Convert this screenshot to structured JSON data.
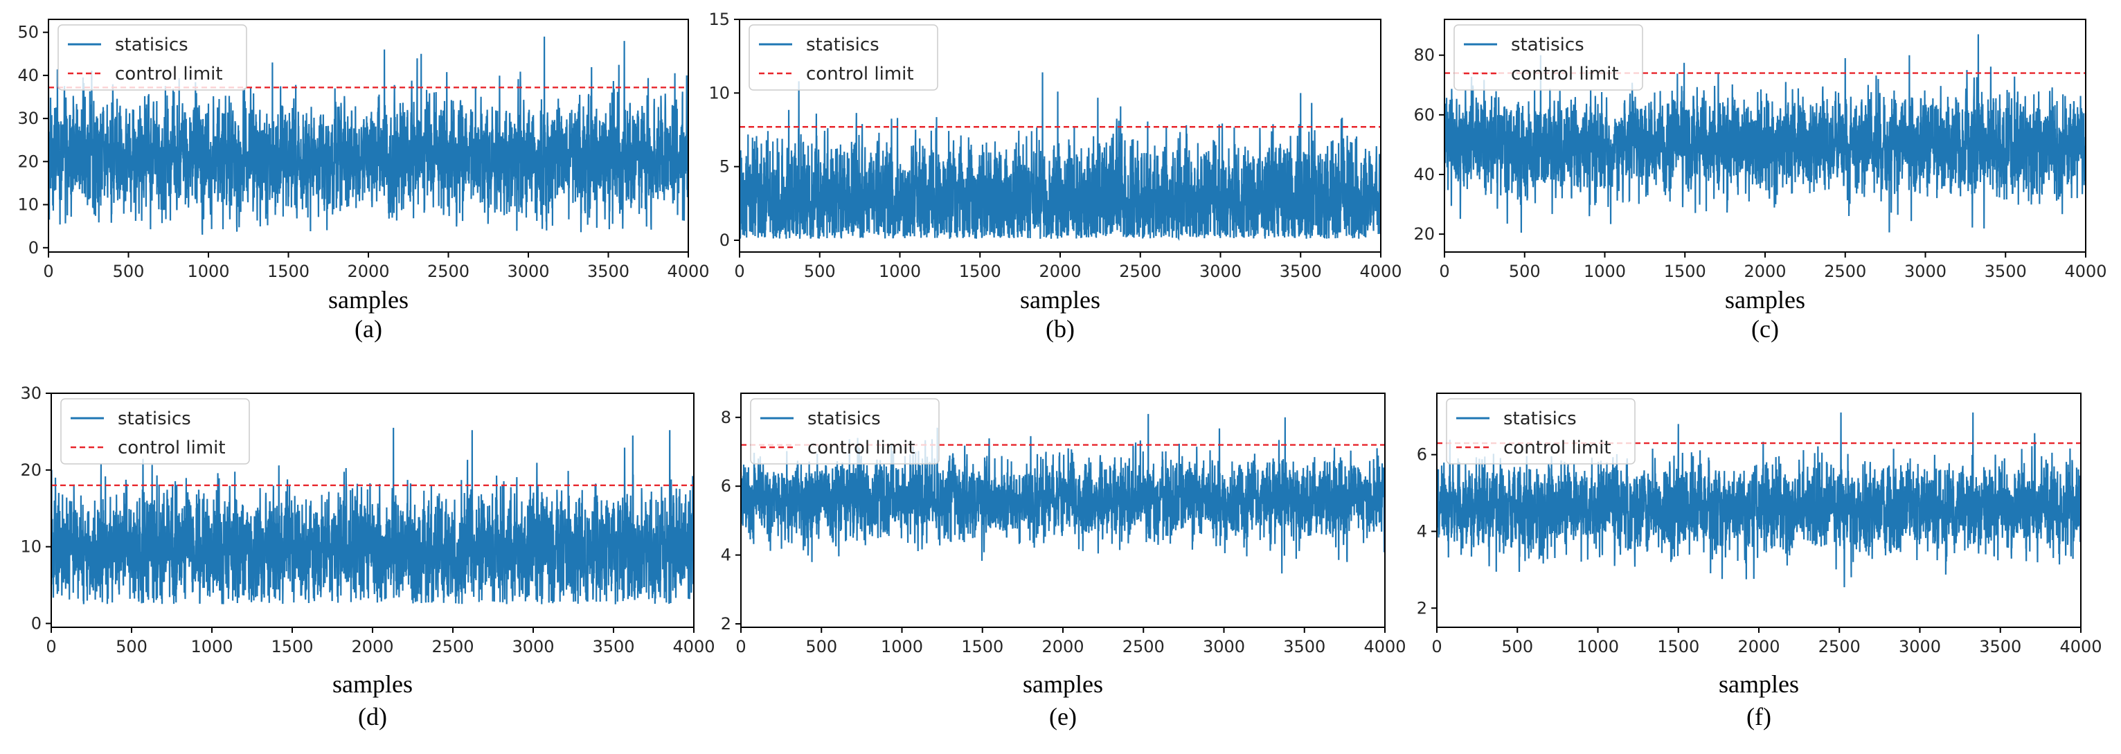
{
  "figure": {
    "panels": [
      {
        "caption": "(a)",
        "xlabel": "samples"
      },
      {
        "caption": "(b)",
        "xlabel": "samples"
      },
      {
        "caption": "(c)",
        "xlabel": "samples"
      },
      {
        "caption": "(d)",
        "xlabel": "samples"
      },
      {
        "caption": "(e)",
        "xlabel": "samples"
      },
      {
        "caption": "(f)",
        "xlabel": "samples"
      }
    ]
  },
  "colors": {
    "statistic_line": "#1f77b4",
    "control_limit": "#e8252b",
    "axis": "#000000"
  },
  "chart_data": [
    {
      "type": "line",
      "title": "",
      "xlabel": "samples",
      "ylabel": "",
      "caption": "(a)",
      "xlim": [
        0,
        4000
      ],
      "ylim": [
        -1,
        53
      ],
      "xticks": [
        0,
        500,
        1000,
        1500,
        2000,
        2500,
        3000,
        3500,
        4000
      ],
      "yticks": [
        0,
        10,
        20,
        30,
        40,
        50
      ],
      "series": [
        {
          "name": "statisics",
          "n_samples": 4000,
          "approx_mean": 21,
          "approx_min": 3,
          "approx_max": 49,
          "peaks": [
            {
              "x": 1400,
              "y": 43
            },
            {
              "x": 2100,
              "y": 46
            },
            {
              "x": 2330,
              "y": 45
            },
            {
              "x": 3100,
              "y": 49
            },
            {
              "x": 3600,
              "y": 48
            },
            {
              "x": 3990,
              "y": 40
            }
          ]
        },
        {
          "name": "control limit",
          "value": 37.2,
          "style": "dashed"
        }
      ],
      "legend": [
        "statisics",
        "control limit"
      ],
      "legend_position": "upper-left"
    },
    {
      "type": "line",
      "title": "",
      "xlabel": "samples",
      "ylabel": "",
      "caption": "(b)",
      "xlim": [
        0,
        4000
      ],
      "ylim": [
        -0.8,
        15
      ],
      "xticks": [
        0,
        500,
        1000,
        1500,
        2000,
        2500,
        3000,
        3500,
        4000
      ],
      "yticks": [
        0,
        5,
        10,
        15
      ],
      "series": [
        {
          "name": "statisics",
          "n_samples": 4000,
          "approx_mean": 2.8,
          "approx_min": 0.1,
          "approx_max": 11.4,
          "peaks": [
            {
              "x": 370,
              "y": 10.8
            },
            {
              "x": 1890,
              "y": 11.4
            },
            {
              "x": 1985,
              "y": 10.1
            },
            {
              "x": 3500,
              "y": 10.0
            }
          ]
        },
        {
          "name": "control limit",
          "value": 7.7,
          "style": "dashed"
        }
      ],
      "legend": [
        "statisics",
        "control limit"
      ],
      "legend_position": "upper-left"
    },
    {
      "type": "line",
      "title": "",
      "xlabel": "samples",
      "ylabel": "",
      "caption": "(c)",
      "xlim": [
        0,
        4000
      ],
      "ylim": [
        14,
        92
      ],
      "xticks": [
        0,
        500,
        1000,
        1500,
        2000,
        2500,
        3000,
        3500,
        4000
      ],
      "yticks": [
        20,
        40,
        60,
        80
      ],
      "series": [
        {
          "name": "statisics",
          "n_samples": 4000,
          "approx_mean": 50,
          "approx_min": 20,
          "approx_max": 87,
          "peaks": [
            {
              "x": 600,
              "y": 80
            },
            {
              "x": 2500,
              "y": 79
            },
            {
              "x": 2900,
              "y": 80
            },
            {
              "x": 3330,
              "y": 87
            }
          ]
        },
        {
          "name": "control limit",
          "value": 74,
          "style": "dashed"
        }
      ],
      "legend": [
        "statisics",
        "control limit"
      ],
      "legend_position": "upper-left"
    },
    {
      "type": "line",
      "title": "",
      "xlabel": "samples",
      "ylabel": "",
      "caption": "(d)",
      "xlim": [
        0,
        4000
      ],
      "ylim": [
        -0.5,
        30
      ],
      "xticks": [
        0,
        500,
        1000,
        1500,
        2000,
        2500,
        3000,
        3500,
        4000
      ],
      "yticks": [
        0,
        10,
        20,
        30
      ],
      "series": [
        {
          "name": "statisics",
          "n_samples": 4000,
          "approx_mean": 9.5,
          "approx_min": 2.5,
          "approx_max": 25.5,
          "peaks": [
            {
              "x": 2130,
              "y": 25.5
            },
            {
              "x": 2620,
              "y": 25.2
            },
            {
              "x": 3620,
              "y": 24.5
            },
            {
              "x": 3850,
              "y": 25.2
            }
          ]
        },
        {
          "name": "control limit",
          "value": 18,
          "style": "dashed"
        }
      ],
      "legend": [
        "statisics",
        "control limit"
      ],
      "legend_position": "upper-left"
    },
    {
      "type": "line",
      "title": "",
      "xlabel": "samples",
      "ylabel": "",
      "caption": "(e)",
      "xlim": [
        0,
        4000
      ],
      "ylim": [
        1.9,
        8.7
      ],
      "xticks": [
        0,
        500,
        1000,
        1500,
        2000,
        2500,
        3000,
        3500,
        4000
      ],
      "yticks": [
        2,
        4,
        6,
        8
      ],
      "series": [
        {
          "name": "statisics",
          "n_samples": 4000,
          "approx_mean": 5.6,
          "approx_min": 3.1,
          "approx_max": 8.1,
          "peaks": [
            {
              "x": 2530,
              "y": 8.1
            },
            {
              "x": 3380,
              "y": 8.0
            },
            {
              "x": 1220,
              "y": 7.7
            }
          ]
        },
        {
          "name": "control limit",
          "value": 7.2,
          "style": "dashed"
        }
      ],
      "legend": [
        "statisics",
        "control limit"
      ],
      "legend_position": "upper-left"
    },
    {
      "type": "line",
      "title": "",
      "xlabel": "samples",
      "ylabel": "",
      "caption": "(f)",
      "xlim": [
        0,
        4000
      ],
      "ylim": [
        1.5,
        7.6
      ],
      "xticks": [
        0,
        500,
        1000,
        1500,
        2000,
        2500,
        3000,
        3500,
        4000
      ],
      "yticks": [
        2,
        4,
        6
      ],
      "series": [
        {
          "name": "statisics",
          "n_samples": 4000,
          "approx_mean": 4.6,
          "approx_min": 2.5,
          "approx_max": 7.1,
          "peaks": [
            {
              "x": 2510,
              "y": 7.1
            },
            {
              "x": 3330,
              "y": 7.1
            },
            {
              "x": 1500,
              "y": 6.8
            }
          ]
        },
        {
          "name": "control limit",
          "value": 6.3,
          "style": "dashed"
        }
      ],
      "legend": [
        "statisics",
        "control limit"
      ],
      "legend_position": "upper-left"
    }
  ]
}
